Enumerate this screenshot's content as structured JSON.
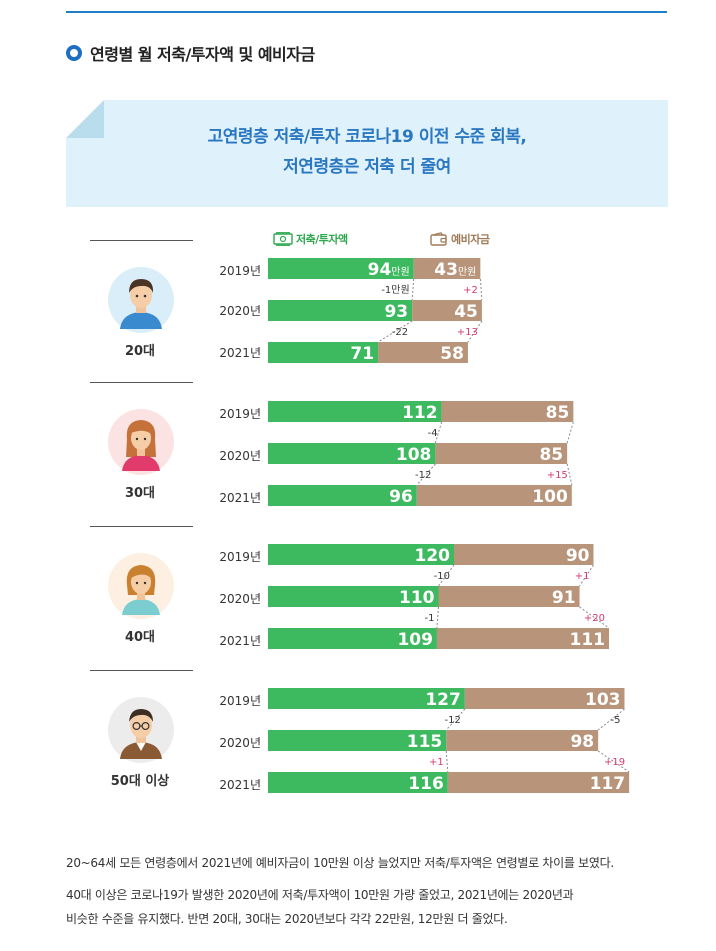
{
  "section_title": "연령별 월 저축/투자액 및 예비자금",
  "banner": {
    "line1": "고연령층 저축/투자 코로나19 이전 수준 회복,",
    "line2": "저연령층은 저축 더 줄여"
  },
  "legend": {
    "savings": "저축/투자액",
    "reserve": "예비자금"
  },
  "colors": {
    "savings": "#3dba5f",
    "reserve": "#b8957a",
    "positive_change": "#d63a6e",
    "negative_change": "#333333"
  },
  "unit": "만원",
  "chart_data": {
    "type": "bar",
    "orientation": "horizontal-diverging",
    "series": [
      {
        "name": "저축/투자액",
        "key": "savings"
      },
      {
        "name": "예비자금",
        "key": "reserve"
      }
    ],
    "groups": [
      {
        "age": "20대",
        "avatar_icon": "young-man-icon",
        "years": [
          {
            "year": "2019년",
            "savings": 94,
            "reserve": 43
          },
          {
            "year": "2020년",
            "savings": 93,
            "reserve": 45
          },
          {
            "year": "2021년",
            "savings": 71,
            "reserve": 58
          }
        ],
        "changes": [
          {
            "savings": "-1만원",
            "reserve": "+2"
          },
          {
            "savings": "-22",
            "reserve": "+13"
          }
        ]
      },
      {
        "age": "30대",
        "avatar_icon": "young-woman-icon",
        "years": [
          {
            "year": "2019년",
            "savings": 112,
            "reserve": 85
          },
          {
            "year": "2020년",
            "savings": 108,
            "reserve": 85
          },
          {
            "year": "2021년",
            "savings": 96,
            "reserve": 100
          }
        ],
        "changes": [
          {
            "savings": "-4",
            "reserve": ""
          },
          {
            "savings": "-12",
            "reserve": "+15"
          }
        ]
      },
      {
        "age": "40대",
        "avatar_icon": "middle-aged-woman-icon",
        "years": [
          {
            "year": "2019년",
            "savings": 120,
            "reserve": 90
          },
          {
            "year": "2020년",
            "savings": 110,
            "reserve": 91
          },
          {
            "year": "2021년",
            "savings": 109,
            "reserve": 111
          }
        ],
        "changes": [
          {
            "savings": "-10",
            "reserve": "+1"
          },
          {
            "savings": "-1",
            "reserve": "+20"
          }
        ]
      },
      {
        "age": "50대 이상",
        "avatar_icon": "older-man-with-glasses-icon",
        "years": [
          {
            "year": "2019년",
            "savings": 127,
            "reserve": 103
          },
          {
            "year": "2020년",
            "savings": 115,
            "reserve": 98
          },
          {
            "year": "2021년",
            "savings": 116,
            "reserve": 117
          }
        ],
        "changes": [
          {
            "savings": "-12",
            "reserve": "-5"
          },
          {
            "savings": "+1",
            "reserve": "+19"
          }
        ]
      }
    ]
  },
  "footnotes": [
    "20~64세 모든 연령층에서 2021년에 예비자금이 10만원 이상 늘었지만 저축/투자액은 연령별로 차이를 보였다.",
    "40대 이상은 코로나19가 발생한 2020년에 저축/투자액이 10만원 가량 줄었고, 2021년에는 2020년과",
    "비슷한 수준을 유지했다. 반면 20대, 30대는 2020년보다 각각 22만원, 12만원 더 줄었다."
  ]
}
